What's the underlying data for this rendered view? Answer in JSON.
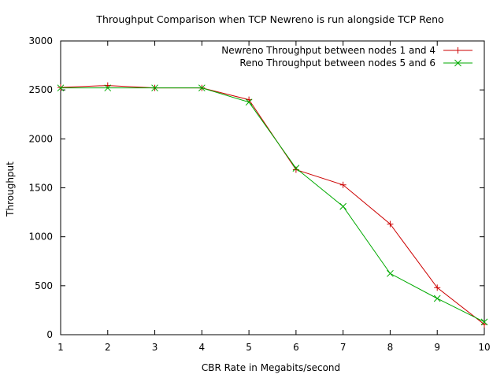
{
  "chart_data": {
    "type": "line",
    "title": "Throughput Comparison when TCP Newreno is run alongside TCP Reno",
    "xlabel": "CBR Rate in Megabits/second",
    "ylabel": "Throughput",
    "xlim": [
      1,
      10
    ],
    "ylim": [
      0,
      3000
    ],
    "xticks": [
      "1",
      "2",
      "3",
      "4",
      "5",
      "6",
      "7",
      "8",
      "9",
      "10"
    ],
    "yticks": [
      "0",
      "500",
      "1000",
      "1500",
      "2000",
      "2500",
      "3000"
    ],
    "legend_position": "top-right",
    "grid": false,
    "x": [
      1,
      2,
      3,
      4,
      5,
      6,
      7,
      8,
      9,
      10
    ],
    "series": [
      {
        "name": "Newreno Throughput between nodes 1 and 4",
        "color": "#cc0000",
        "marker": "plus",
        "values": [
          2525,
          2545,
          2520,
          2520,
          2400,
          1685,
          1530,
          1130,
          480,
          105
        ]
      },
      {
        "name": "Reno Throughput between nodes 5 and 6",
        "color": "#00aa00",
        "marker": "cross",
        "values": [
          2520,
          2520,
          2520,
          2520,
          2375,
          1700,
          1310,
          625,
          370,
          130
        ]
      }
    ]
  }
}
